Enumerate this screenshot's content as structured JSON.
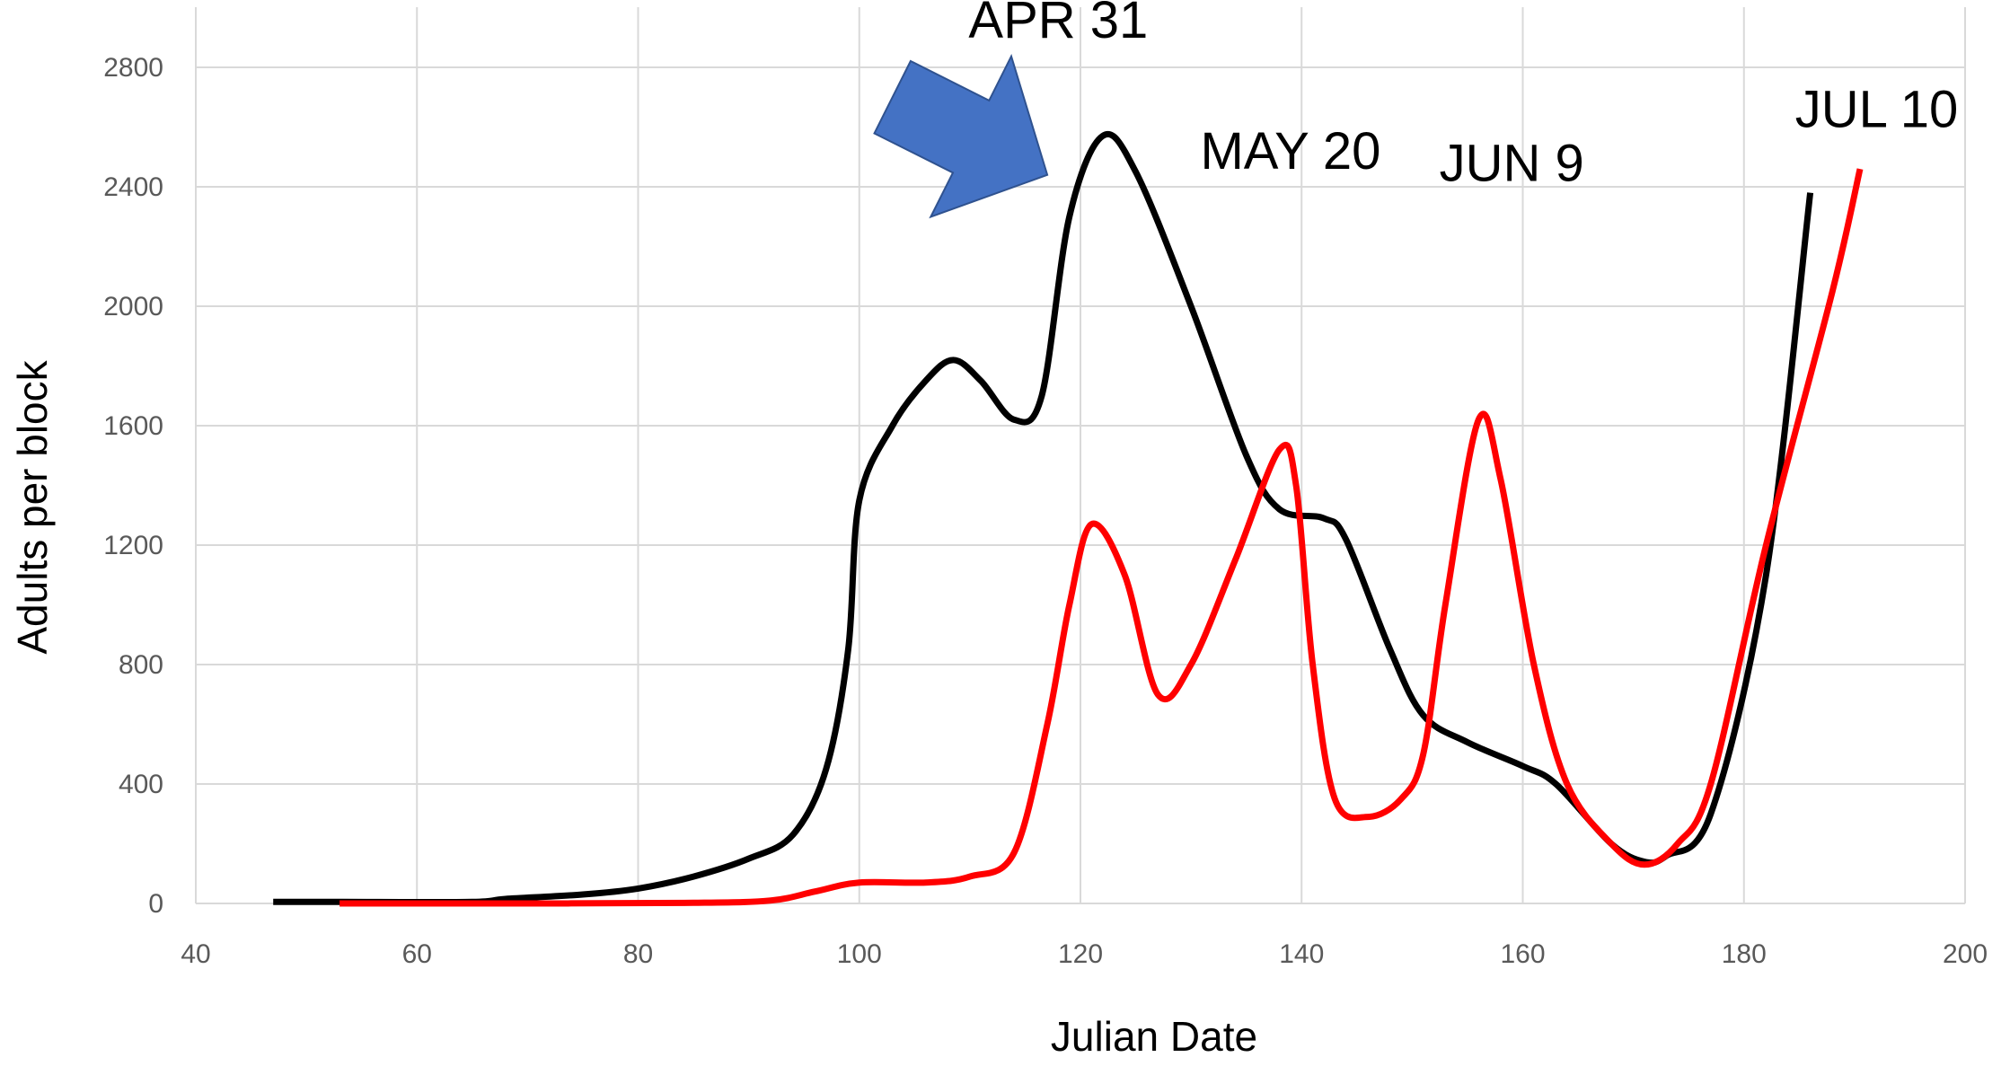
{
  "chart_data": {
    "type": "line",
    "title": "",
    "xlabel": "Julian Date",
    "ylabel": "Adults per block",
    "xlim": [
      40,
      200
    ],
    "ylim": [
      0,
      2800
    ],
    "x_ticks": [
      40,
      60,
      80,
      100,
      120,
      140,
      160,
      180,
      200
    ],
    "y_ticks": [
      0,
      400,
      800,
      1200,
      1600,
      2000,
      2400,
      2800
    ],
    "grid": true,
    "legend": "none",
    "series": [
      {
        "color": "#000000",
        "points": [
          [
            47,
            5
          ],
          [
            53,
            5
          ],
          [
            65,
            5
          ],
          [
            68,
            15
          ],
          [
            75,
            30
          ],
          [
            80,
            50
          ],
          [
            85,
            90
          ],
          [
            90,
            150
          ],
          [
            94,
            230
          ],
          [
            97,
            450
          ],
          [
            99,
            850
          ],
          [
            100,
            1350
          ],
          [
            103,
            1600
          ],
          [
            106,
            1750
          ],
          [
            108.5,
            1820
          ],
          [
            111,
            1750
          ],
          [
            114,
            1620
          ],
          [
            116.5,
            1700
          ],
          [
            119,
            2300
          ],
          [
            122,
            2570
          ],
          [
            125,
            2450
          ],
          [
            130,
            2000
          ],
          [
            135,
            1500
          ],
          [
            138,
            1320
          ],
          [
            142,
            1290
          ],
          [
            144,
            1220
          ],
          [
            148,
            850
          ],
          [
            151,
            630
          ],
          [
            155,
            540
          ],
          [
            160,
            460
          ],
          [
            163,
            400
          ],
          [
            168,
            200
          ],
          [
            171,
            140
          ],
          [
            173,
            160
          ],
          [
            177,
            300
          ],
          [
            182,
            1100
          ],
          [
            186,
            2380
          ]
        ]
      },
      {
        "color": "#ff0000",
        "points": [
          [
            53,
            0
          ],
          [
            70,
            0
          ],
          [
            85,
            2
          ],
          [
            92,
            10
          ],
          [
            96,
            40
          ],
          [
            100,
            70
          ],
          [
            106,
            70
          ],
          [
            110,
            90
          ],
          [
            114,
            170
          ],
          [
            117,
            600
          ],
          [
            119,
            1000
          ],
          [
            121,
            1270
          ],
          [
            124,
            1100
          ],
          [
            127,
            700
          ],
          [
            130,
            800
          ],
          [
            134,
            1150
          ],
          [
            138,
            1520
          ],
          [
            139.5,
            1400
          ],
          [
            141,
            800
          ],
          [
            143,
            350
          ],
          [
            146,
            290
          ],
          [
            149,
            350
          ],
          [
            151,
            500
          ],
          [
            153,
            1000
          ],
          [
            156,
            1620
          ],
          [
            158,
            1420
          ],
          [
            161,
            800
          ],
          [
            164,
            400
          ],
          [
            168,
            200
          ],
          [
            171,
            130
          ],
          [
            174,
            200
          ],
          [
            177,
            400
          ],
          [
            182,
            1200
          ],
          [
            188,
            2050
          ],
          [
            190.5,
            2460
          ]
        ]
      }
    ],
    "annotations": [
      {
        "text": "APR 31",
        "x": 118,
        "y": 2900
      },
      {
        "text": "MAY 20",
        "x": 139,
        "y": 2460
      },
      {
        "text": "JUN 9",
        "x": 159,
        "y": 2420
      },
      {
        "text": "JUL 10",
        "x": 192,
        "y": 2600
      }
    ],
    "arrow": {
      "color": "#4472c4",
      "from": [
        103,
        2700
      ],
      "to": [
        117,
        2440
      ]
    }
  }
}
